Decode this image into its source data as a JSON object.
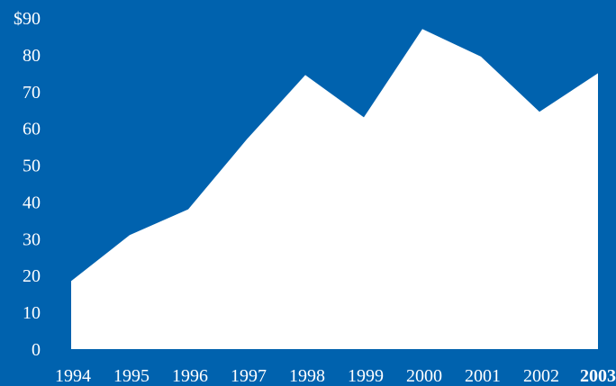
{
  "chart_data": {
    "type": "area",
    "title": "",
    "xlabel": "",
    "ylabel": "",
    "x": [
      "1994",
      "1995",
      "1996",
      "1997",
      "1998",
      "1999",
      "2000",
      "2001",
      "2002",
      "2003"
    ],
    "highlighted_category": "2003",
    "series": [
      {
        "values": [
          18.5,
          31,
          38,
          57,
          74.5,
          63,
          87,
          79.5,
          64.5,
          75
        ]
      }
    ],
    "ylim": [
      0,
      90
    ],
    "y_ticks": [
      0,
      10,
      20,
      30,
      40,
      50,
      60,
      70,
      80,
      90
    ],
    "y_tick_labels": [
      "0",
      "10",
      "20",
      "30",
      "40",
      "50",
      "60",
      "70",
      "80",
      "$90"
    ],
    "grid": false,
    "colors": {
      "background": "#0062AE",
      "area_fill": "#FFFFFF",
      "text": "#FFFFFF"
    }
  }
}
